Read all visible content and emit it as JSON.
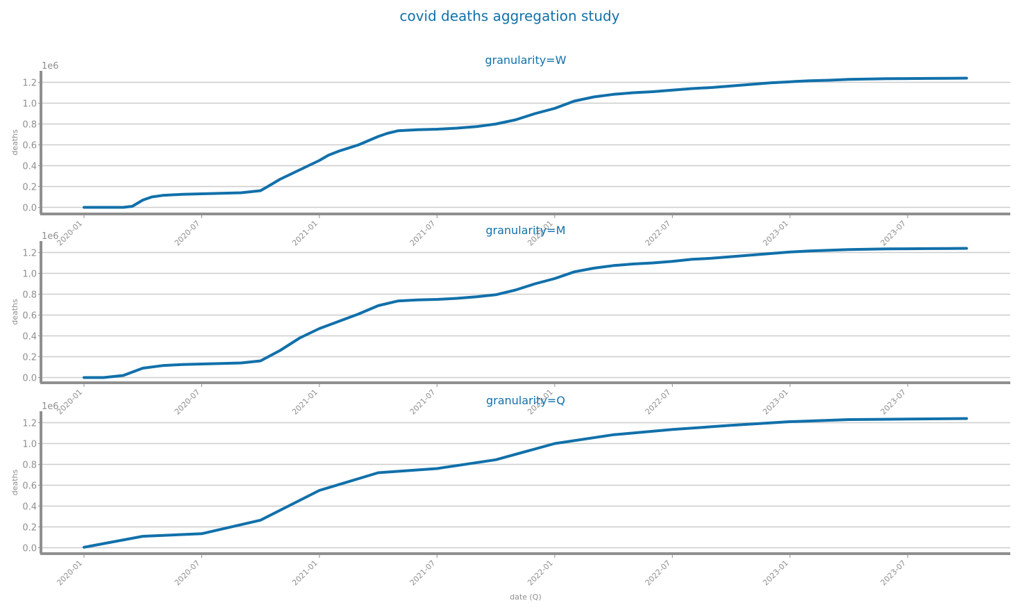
{
  "title": "covid deaths aggregation study",
  "colors": {
    "line": "#1170aa",
    "title": "#1170aa",
    "grid": "#cccccc",
    "axis": "#8f8f8f"
  },
  "x_ticks": [
    "2020-01",
    "2020-07",
    "2021-01",
    "2021-07",
    "2022-01",
    "2022-07",
    "2023-01",
    "2023-07"
  ],
  "y_ticks": [
    "0.0",
    "0.2",
    "0.4",
    "0.6",
    "0.8",
    "1.0",
    "1.2"
  ],
  "y_offset_label": "1e6",
  "chart_data": [
    {
      "type": "line",
      "title": "granularity=W",
      "ylabel": "deaths",
      "xlabel": "",
      "ylim": [
        -0.05,
        1.3
      ],
      "grid": "horizontal",
      "series": [
        {
          "x": [
            "2020-01-01",
            "2020-02-01",
            "2020-03-01",
            "2020-03-15",
            "2020-04-01",
            "2020-04-15",
            "2020-05-01",
            "2020-06-01",
            "2020-07-01",
            "2020-08-01",
            "2020-09-01",
            "2020-10-01",
            "2020-10-15",
            "2020-11-01",
            "2020-12-01",
            "2021-01-01",
            "2021-01-15",
            "2021-02-01",
            "2021-03-01",
            "2021-04-01",
            "2021-04-15",
            "2021-05-01",
            "2021-06-01",
            "2021-07-01",
            "2021-08-01",
            "2021-09-01",
            "2021-10-01",
            "2021-11-01",
            "2021-12-01",
            "2022-01-01",
            "2022-02-01",
            "2022-03-01",
            "2022-04-01",
            "2022-05-01",
            "2022-06-01",
            "2022-07-01",
            "2022-08-01",
            "2022-09-01",
            "2022-10-01",
            "2022-11-01",
            "2022-12-01",
            "2023-01-01",
            "2023-02-01",
            "2023-03-01",
            "2023-04-01",
            "2023-05-01",
            "2023-06-01",
            "2023-07-01",
            "2023-08-01",
            "2023-09-01",
            "2023-10-01"
          ],
          "y": [
            0.0,
            0.0,
            0.0,
            0.01,
            0.07,
            0.1,
            0.115,
            0.125,
            0.13,
            0.135,
            0.14,
            0.16,
            0.21,
            0.27,
            0.36,
            0.45,
            0.5,
            0.54,
            0.6,
            0.68,
            0.71,
            0.735,
            0.745,
            0.75,
            0.76,
            0.775,
            0.8,
            0.84,
            0.9,
            0.95,
            1.02,
            1.06,
            1.085,
            1.1,
            1.11,
            1.125,
            1.14,
            1.15,
            1.165,
            1.18,
            1.195,
            1.205,
            1.215,
            1.22,
            1.228,
            1.232,
            1.235,
            1.236,
            1.237,
            1.238,
            1.24
          ]
        }
      ]
    },
    {
      "type": "line",
      "title": "granularity=M",
      "ylabel": "deaths",
      "xlabel": "",
      "ylim": [
        -0.05,
        1.3
      ],
      "grid": "horizontal",
      "series": [
        {
          "x": [
            "2020-01",
            "2020-02",
            "2020-03",
            "2020-04",
            "2020-05",
            "2020-06",
            "2020-07",
            "2020-08",
            "2020-09",
            "2020-10",
            "2020-11",
            "2020-12",
            "2021-01",
            "2021-02",
            "2021-03",
            "2021-04",
            "2021-05",
            "2021-06",
            "2021-07",
            "2021-08",
            "2021-09",
            "2021-10",
            "2021-11",
            "2021-12",
            "2022-01",
            "2022-02",
            "2022-03",
            "2022-04",
            "2022-05",
            "2022-06",
            "2022-07",
            "2022-08",
            "2022-09",
            "2022-10",
            "2022-11",
            "2022-12",
            "2023-01",
            "2023-02",
            "2023-03",
            "2023-04",
            "2023-05",
            "2023-06",
            "2023-07",
            "2023-08",
            "2023-09",
            "2023-10"
          ],
          "y": [
            0.0,
            0.0,
            0.02,
            0.09,
            0.115,
            0.125,
            0.13,
            0.135,
            0.14,
            0.16,
            0.26,
            0.38,
            0.47,
            0.54,
            0.61,
            0.69,
            0.735,
            0.745,
            0.75,
            0.76,
            0.775,
            0.795,
            0.84,
            0.9,
            0.95,
            1.015,
            1.05,
            1.075,
            1.09,
            1.1,
            1.115,
            1.135,
            1.145,
            1.16,
            1.175,
            1.19,
            1.205,
            1.215,
            1.222,
            1.228,
            1.232,
            1.235,
            1.236,
            1.237,
            1.238,
            1.24
          ]
        }
      ]
    },
    {
      "type": "line",
      "title": "granularity=Q",
      "ylabel": "deaths",
      "xlabel": "date (Q)",
      "ylim": [
        -0.05,
        1.3
      ],
      "grid": "horizontal",
      "series": [
        {
          "x": [
            "2020-01",
            "2020-04",
            "2020-07",
            "2020-10",
            "2021-01",
            "2021-04",
            "2021-07",
            "2021-10",
            "2022-01",
            "2022-04",
            "2022-07",
            "2022-10",
            "2023-01",
            "2023-04",
            "2023-07",
            "2023-10"
          ],
          "y": [
            0.005,
            0.11,
            0.135,
            0.265,
            0.55,
            0.72,
            0.76,
            0.845,
            1.0,
            1.085,
            1.135,
            1.175,
            1.21,
            1.23,
            1.235,
            1.24
          ]
        }
      ]
    }
  ]
}
